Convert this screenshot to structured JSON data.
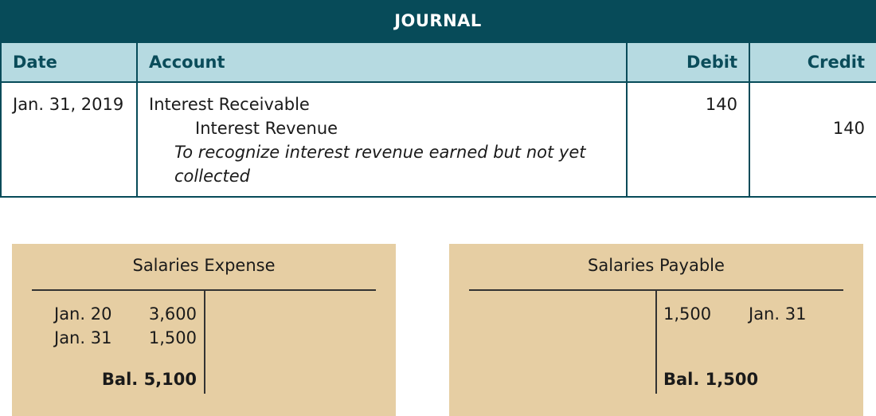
{
  "journal": {
    "title": "JOURNAL",
    "headers": {
      "date": "Date",
      "account": "Account",
      "debit": "Debit",
      "credit": "Credit"
    },
    "entry": {
      "date": "Jan. 31, 2019",
      "debit_account": "Interest Receivable",
      "credit_account": "Interest Revenue",
      "memo": "To recognize interest revenue earned but not yet collected",
      "debit": "140",
      "credit": "140"
    }
  },
  "t_accounts": [
    {
      "title": "Salaries Expense",
      "debits": [
        {
          "date": "Jan. 20",
          "amount": "3,600"
        },
        {
          "date": "Jan. 31",
          "amount": "1,500"
        }
      ],
      "balance": "Bal. 5,100"
    },
    {
      "title": "Salaries Payable",
      "credits": [
        {
          "amount": "1,500",
          "date": "Jan. 31"
        }
      ],
      "balance": "Bal. 1,500"
    }
  ]
}
